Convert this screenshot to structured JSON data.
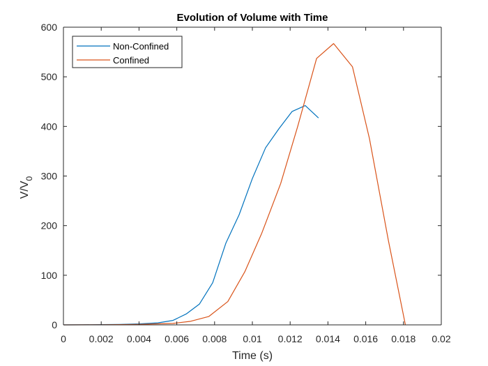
{
  "chart_data": {
    "type": "line",
    "title": "Evolution of Volume with Time",
    "xlabel": "Time (s)",
    "ylabel": "V/V",
    "ylabel_subscript": "0",
    "xlim": [
      0,
      0.02
    ],
    "ylim": [
      0,
      600
    ],
    "xticks": [
      0,
      0.002,
      0.004,
      0.006,
      0.008,
      0.01,
      0.012,
      0.014,
      0.016,
      0.018,
      0.02
    ],
    "xtick_labels": [
      "0",
      "0.002",
      "0.004",
      "0.006",
      "0.008",
      "0.01",
      "0.012",
      "0.014",
      "0.016",
      "0.018",
      "0.02"
    ],
    "yticks": [
      0,
      100,
      200,
      300,
      400,
      500,
      600
    ],
    "ytick_labels": [
      "0",
      "100",
      "200",
      "300",
      "400",
      "500",
      "600"
    ],
    "grid": false,
    "legend_position": "top-left",
    "series": [
      {
        "name": "Non-Confined",
        "color": "#0072BD",
        "x": [
          0,
          0.001,
          0.002,
          0.003,
          0.004,
          0.005,
          0.0058,
          0.0065,
          0.0072,
          0.0079,
          0.0086,
          0.0093,
          0.01,
          0.0107,
          0.0114,
          0.0121,
          0.0128,
          0.0135
        ],
        "y": [
          0,
          0.2,
          0.5,
          1,
          2,
          4,
          9,
          22,
          42,
          85,
          165,
          222,
          295,
          357,
          395,
          430,
          442,
          417
        ]
      },
      {
        "name": "Confined",
        "color": "#D95319",
        "x": [
          0,
          0.002,
          0.004,
          0.0058,
          0.0067,
          0.0077,
          0.0087,
          0.0096,
          0.0105,
          0.0115,
          0.0124,
          0.0134,
          0.0143,
          0.0153,
          0.0162,
          0.0172,
          0.0181
        ],
        "y": [
          0,
          0.3,
          1,
          3,
          7,
          17,
          47,
          107,
          185,
          285,
          400,
          537,
          567,
          520,
          375,
          170,
          0
        ]
      }
    ]
  }
}
